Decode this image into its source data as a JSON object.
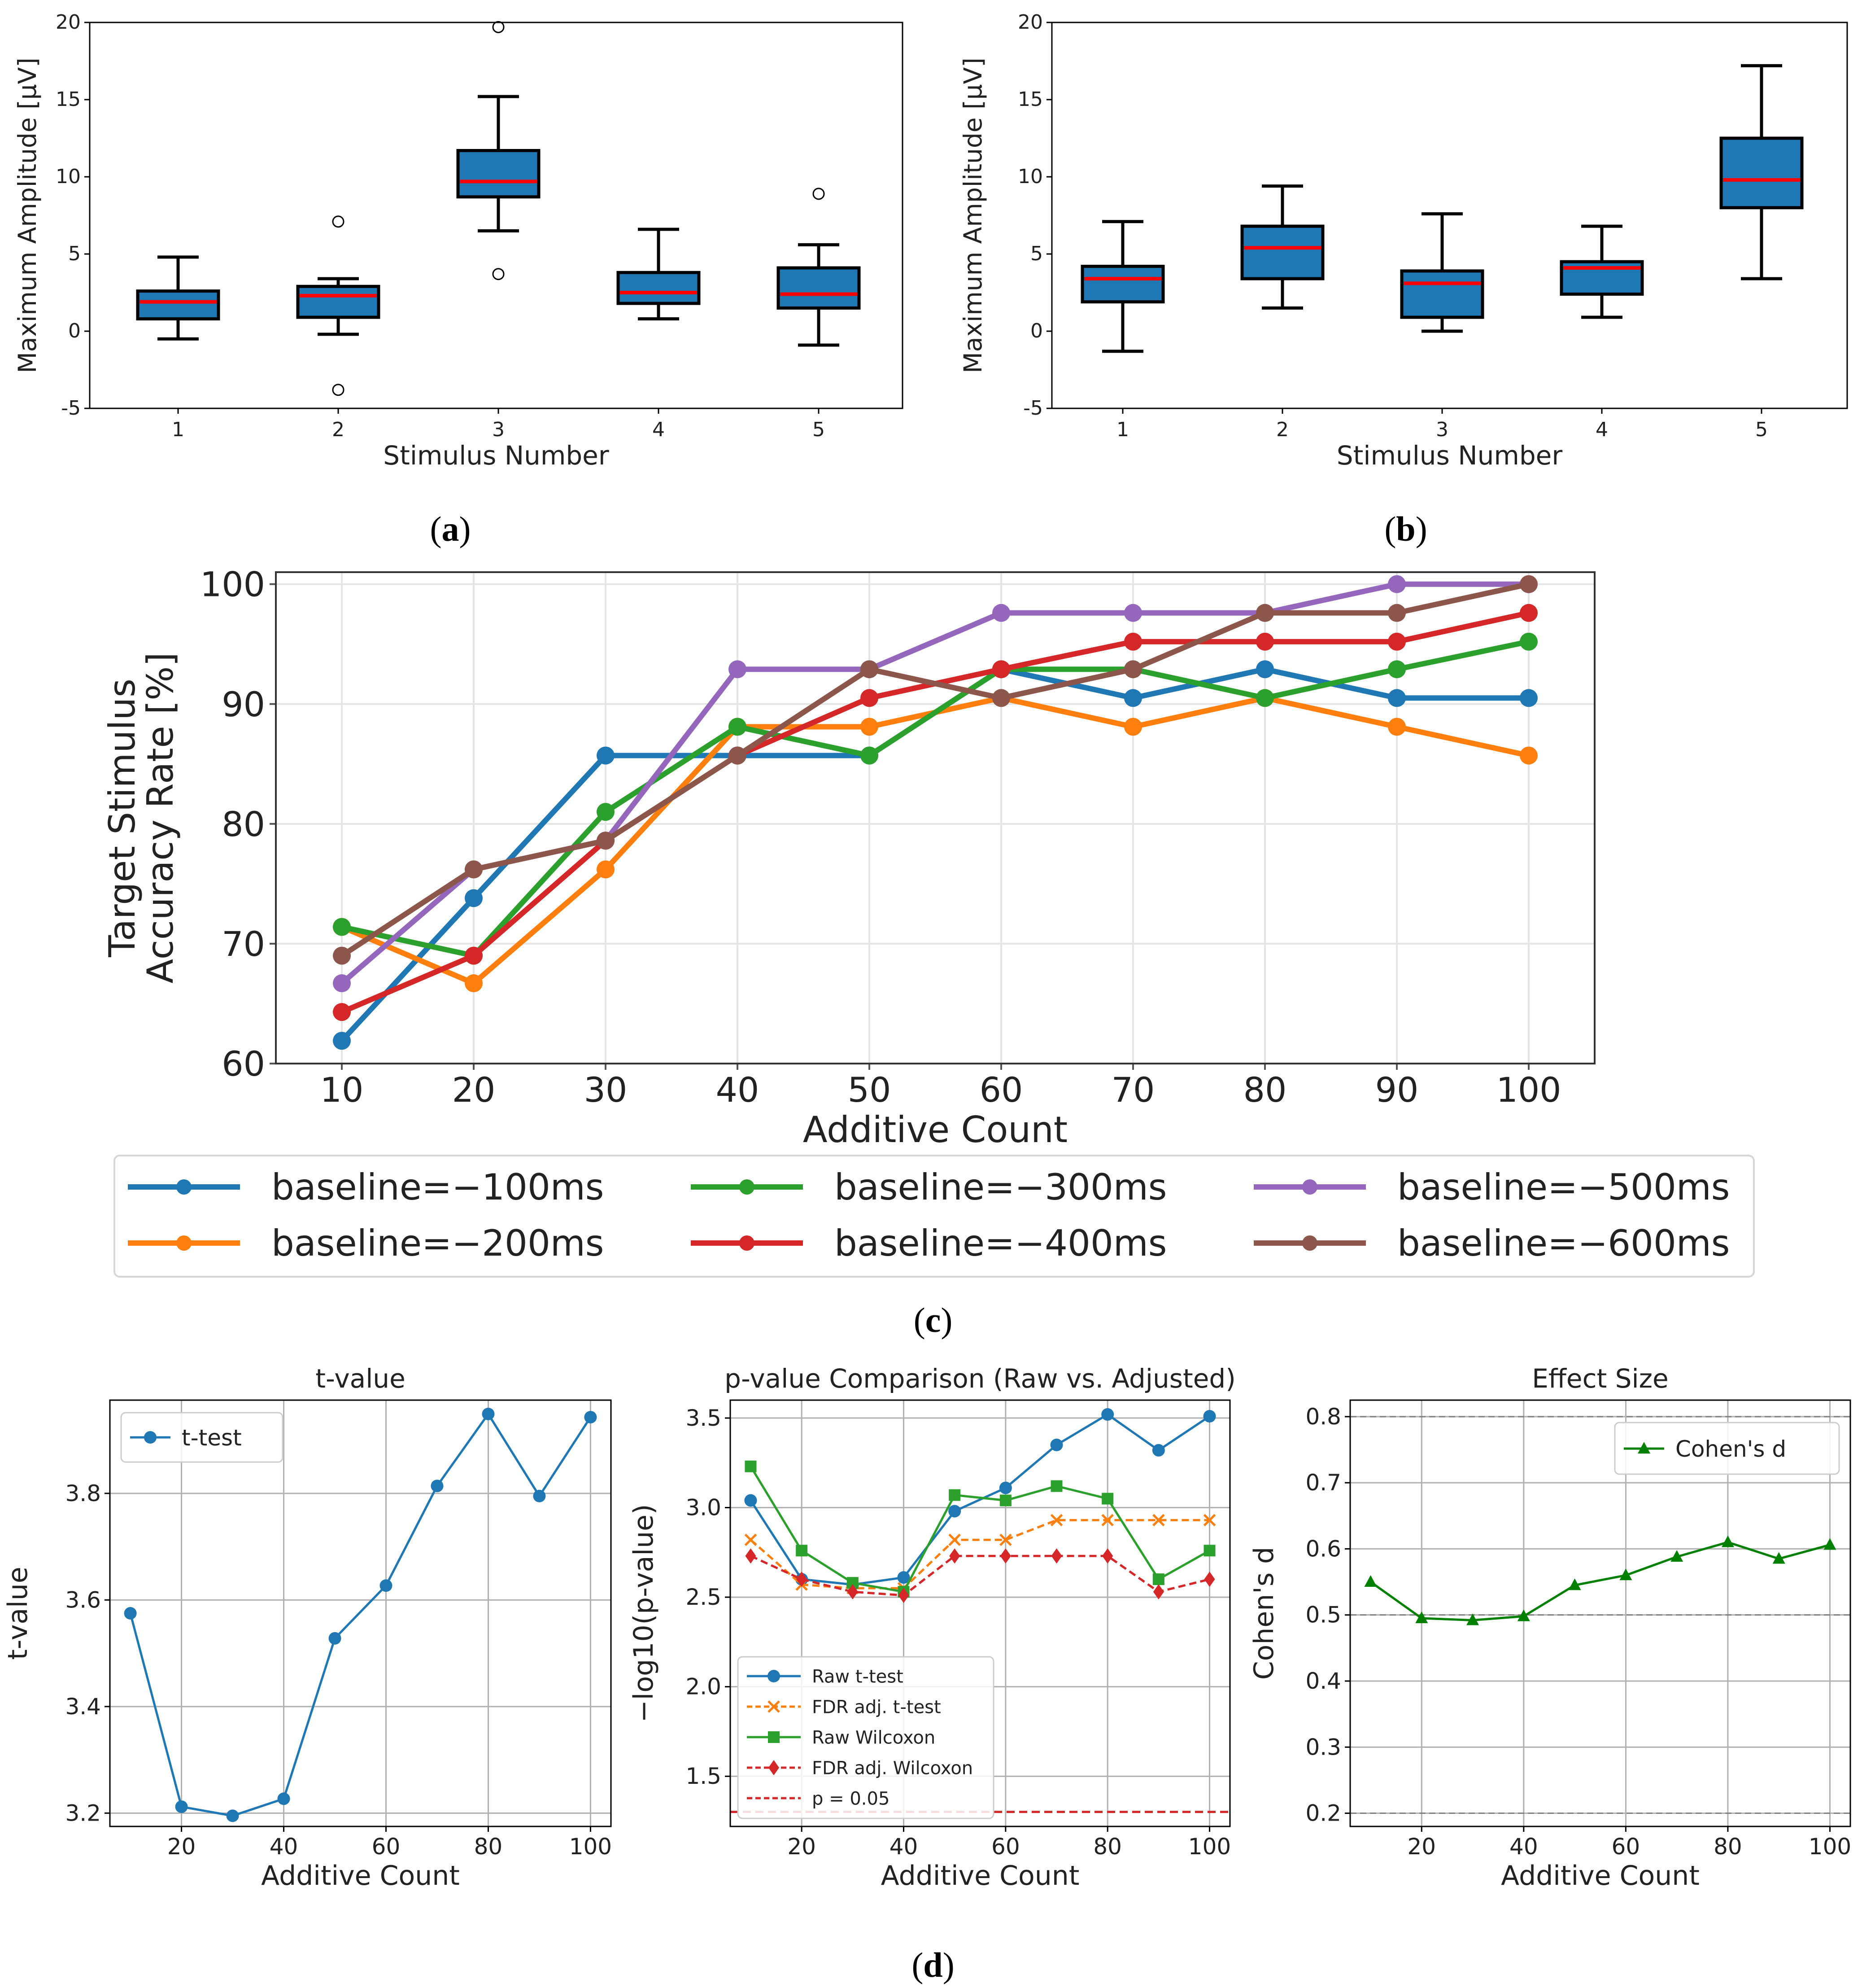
{
  "captions": {
    "a": {
      "label": "a"
    },
    "b": {
      "label": "b"
    },
    "c": {
      "label": "c"
    },
    "d": {
      "label": "d"
    }
  },
  "chart_data": [
    {
      "id": "a",
      "type": "box",
      "title": "",
      "xlabel": "Stimulus Number",
      "ylabel": "Maximum Amplitude [μV]",
      "ylim": [
        -5,
        20
      ],
      "yticks": [
        -5,
        0,
        5,
        10,
        15,
        20
      ],
      "categories": [
        "1",
        "2",
        "3",
        "4",
        "5"
      ],
      "boxes": [
        {
          "whisker_low": -0.5,
          "q1": 0.8,
          "median": 1.9,
          "q3": 2.6,
          "whisker_high": 4.8,
          "outliers": []
        },
        {
          "whisker_low": -0.2,
          "q1": 0.9,
          "median": 2.3,
          "q3": 2.9,
          "whisker_high": 3.4,
          "outliers": [
            7.1,
            -3.8
          ]
        },
        {
          "whisker_low": 6.5,
          "q1": 8.7,
          "median": 9.7,
          "q3": 11.7,
          "whisker_high": 15.2,
          "outliers": [
            19.7,
            3.7
          ]
        },
        {
          "whisker_low": 0.8,
          "q1": 1.8,
          "median": 2.5,
          "q3": 3.8,
          "whisker_high": 6.6,
          "outliers": []
        },
        {
          "whisker_low": -0.9,
          "q1": 1.5,
          "median": 2.4,
          "q3": 4.1,
          "whisker_high": 5.6,
          "outliers": [
            8.9
          ]
        }
      ]
    },
    {
      "id": "b",
      "type": "box",
      "title": "",
      "xlabel": "Stimulus Number",
      "ylabel": "Maximum Amplitude [μV]",
      "ylim": [
        -5,
        20
      ],
      "yticks": [
        -5,
        0,
        5,
        10,
        15,
        20
      ],
      "categories": [
        "1",
        "2",
        "3",
        "4",
        "5"
      ],
      "boxes": [
        {
          "whisker_low": -1.3,
          "q1": 1.9,
          "median": 3.4,
          "q3": 4.2,
          "whisker_high": 7.1,
          "outliers": []
        },
        {
          "whisker_low": 1.5,
          "q1": 3.4,
          "median": 5.4,
          "q3": 6.8,
          "whisker_high": 9.4,
          "outliers": []
        },
        {
          "whisker_low": 0.0,
          "q1": 0.9,
          "median": 3.1,
          "q3": 3.9,
          "whisker_high": 7.6,
          "outliers": []
        },
        {
          "whisker_low": 0.9,
          "q1": 2.4,
          "median": 4.1,
          "q3": 4.5,
          "whisker_high": 6.8,
          "outliers": []
        },
        {
          "whisker_low": 3.4,
          "q1": 8.0,
          "median": 9.8,
          "q3": 12.5,
          "whisker_high": 17.2,
          "outliers": []
        }
      ]
    },
    {
      "id": "c",
      "type": "line",
      "title": "",
      "xlabel": "Additive Count",
      "ylabel_lines": [
        "Target Stimulus",
        "Accuracy Rate [%]"
      ],
      "xlim": [
        5,
        105
      ],
      "ylim": [
        60,
        101
      ],
      "xticks": [
        10,
        20,
        30,
        40,
        50,
        60,
        70,
        80,
        90,
        100
      ],
      "yticks": [
        60,
        70,
        80,
        90,
        100
      ],
      "grid": true,
      "legend_position": "below",
      "x": [
        10,
        20,
        30,
        40,
        50,
        60,
        70,
        80,
        90,
        100
      ],
      "series": [
        {
          "name": "baseline=−100ms",
          "color": "#1f77b4",
          "values": [
            61.9,
            73.8,
            85.7,
            85.7,
            85.7,
            92.9,
            90.5,
            92.9,
            90.5,
            90.5
          ]
        },
        {
          "name": "baseline=−200ms",
          "color": "#ff7f0e",
          "values": [
            71.4,
            66.7,
            76.2,
            88.1,
            88.1,
            90.5,
            88.1,
            90.5,
            88.1,
            85.7
          ]
        },
        {
          "name": "baseline=−300ms",
          "color": "#2ca02c",
          "values": [
            71.4,
            69.0,
            81.0,
            88.1,
            85.7,
            92.9,
            92.9,
            90.5,
            92.9,
            95.2
          ]
        },
        {
          "name": "baseline=−400ms",
          "color": "#d62728",
          "values": [
            64.3,
            69.0,
            78.6,
            85.7,
            90.5,
            92.9,
            95.2,
            95.2,
            95.2,
            97.6
          ]
        },
        {
          "name": "baseline=−500ms",
          "color": "#9467bd",
          "values": [
            66.7,
            76.2,
            78.6,
            92.9,
            92.9,
            97.6,
            97.6,
            97.6,
            100,
            100
          ]
        },
        {
          "name": "baseline=−600ms",
          "color": "#8c564b",
          "values": [
            69.0,
            76.2,
            78.6,
            85.7,
            92.9,
            90.5,
            92.9,
            97.6,
            97.6,
            100
          ]
        }
      ]
    },
    {
      "id": "d1",
      "type": "line",
      "title": "t-value",
      "xlabel": "Additive Count",
      "ylabel": "t-value",
      "xlim": [
        6,
        104
      ],
      "ylim": [
        3.175,
        3.975
      ],
      "xticks": [
        20,
        40,
        60,
        80,
        100
      ],
      "yticks": [
        3.2,
        3.4,
        3.6,
        3.8
      ],
      "ytick_labels": [
        "3.2",
        "3.4",
        "3.6",
        "3.8"
      ],
      "grid": true,
      "legend_position": "top-left",
      "x": [
        10,
        20,
        30,
        40,
        50,
        60,
        70,
        80,
        90,
        100
      ],
      "series": [
        {
          "name": "t-test",
          "color": "#1f77b4",
          "marker": "circle",
          "values": [
            3.575,
            3.212,
            3.195,
            3.227,
            3.528,
            3.627,
            3.814,
            3.949,
            3.795,
            3.943
          ]
        }
      ]
    },
    {
      "id": "d2",
      "type": "line",
      "title": "p-value Comparison (Raw vs. Adjusted)",
      "xlabel": "Additive Count",
      "ylabel": "−log10(p-value)",
      "xlim": [
        6,
        104
      ],
      "ylim": [
        1.22,
        3.6
      ],
      "xticks": [
        20,
        40,
        60,
        80,
        100
      ],
      "yticks": [
        1.5,
        2.0,
        2.5,
        3.0,
        3.5
      ],
      "ytick_labels": [
        "1.5",
        "2.0",
        "2.5",
        "3.0",
        "3.5"
      ],
      "grid": true,
      "legend_position": "bottom-left",
      "x": [
        10,
        20,
        30,
        40,
        50,
        60,
        70,
        80,
        90,
        100
      ],
      "series": [
        {
          "name": "Raw t-test",
          "color": "#1f77b4",
          "marker": "circle",
          "dashed": false,
          "values": [
            3.04,
            2.6,
            2.57,
            2.61,
            2.98,
            3.11,
            3.35,
            3.52,
            3.32,
            3.51
          ]
        },
        {
          "name": "FDR adj. t-test",
          "color": "#ff7f0e",
          "marker": "x",
          "dashed": true,
          "values": [
            2.82,
            2.57,
            2.55,
            2.55,
            2.82,
            2.82,
            2.93,
            2.93,
            2.93,
            2.93
          ]
        },
        {
          "name": "Raw Wilcoxon",
          "color": "#2ca02c",
          "marker": "square",
          "dashed": false,
          "values": [
            3.23,
            2.76,
            2.58,
            2.53,
            3.07,
            3.04,
            3.12,
            3.05,
            2.6,
            2.76
          ]
        },
        {
          "name": "FDR adj. Wilcoxon",
          "color": "#d62728",
          "marker": "diamond",
          "dashed": true,
          "values": [
            2.73,
            2.6,
            2.53,
            2.51,
            2.73,
            2.73,
            2.73,
            2.73,
            2.53,
            2.6
          ]
        }
      ],
      "reference_line": {
        "name": "p = 0.05",
        "color": "#d62728",
        "value": 1.301
      }
    },
    {
      "id": "d3",
      "type": "line",
      "title": "Effect Size",
      "xlabel": "Additive Count",
      "ylabel": "Cohen's d",
      "xlim": [
        6,
        104
      ],
      "ylim": [
        0.18,
        0.825
      ],
      "xticks": [
        20,
        40,
        60,
        80,
        100
      ],
      "yticks": [
        0.2,
        0.3,
        0.4,
        0.5,
        0.6,
        0.7,
        0.8
      ],
      "ytick_labels": [
        "0.2",
        "0.3",
        "0.4",
        "0.5",
        "0.6",
        "0.7",
        "0.8"
      ],
      "grid": true,
      "legend_position": "top-right",
      "x": [
        10,
        20,
        30,
        40,
        50,
        60,
        70,
        80,
        90,
        100
      ],
      "series": [
        {
          "name": "Cohen's d",
          "color": "#008000",
          "marker": "triangle",
          "values": [
            0.55,
            0.495,
            0.492,
            0.498,
            0.545,
            0.56,
            0.588,
            0.61,
            0.585,
            0.606
          ]
        }
      ],
      "reference_lines": [
        0.2,
        0.5,
        0.8
      ]
    }
  ]
}
